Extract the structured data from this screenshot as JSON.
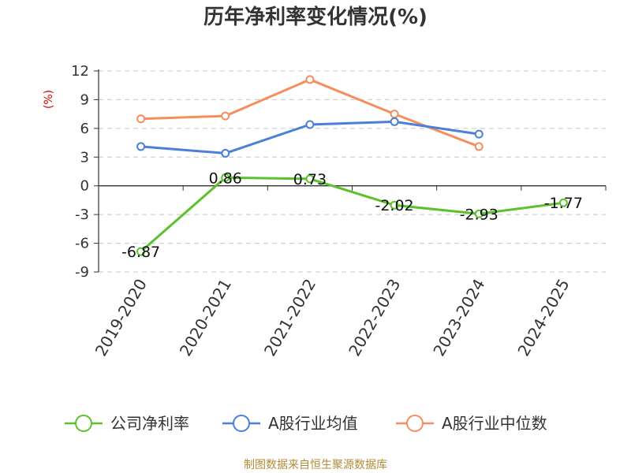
{
  "chart_data": {
    "type": "line",
    "title": "历年净利率变化情况(%)",
    "ylabel": "(%)",
    "categories": [
      "2019-2020",
      "2020-2021",
      "2021-2022",
      "2022-2023",
      "2023-2024",
      "2024-2025"
    ],
    "ylim": [
      -9,
      12
    ],
    "yticks": [
      12,
      9,
      6,
      3,
      0,
      -3,
      -6,
      -9
    ],
    "grid": true,
    "legend_position": "bottom",
    "series": [
      {
        "name": "公司净利率",
        "color": "#5cc12b",
        "values": [
          -6.87,
          0.86,
          0.73,
          -2.02,
          -2.93,
          -1.77
        ],
        "labels": [
          "-6.87",
          "0.86",
          "0.73",
          "-2.02",
          "-2.93",
          "-1.77"
        ]
      },
      {
        "name": "A股行业均值",
        "color": "#4b80d9",
        "values": [
          4.1,
          3.4,
          6.4,
          6.7,
          5.4,
          null
        ]
      },
      {
        "name": "A股行业中位数",
        "color": "#f58e5c",
        "values": [
          7.0,
          7.3,
          11.1,
          7.5,
          4.1,
          null
        ]
      }
    ],
    "source": "制图数据来自恒生聚源数据库"
  }
}
